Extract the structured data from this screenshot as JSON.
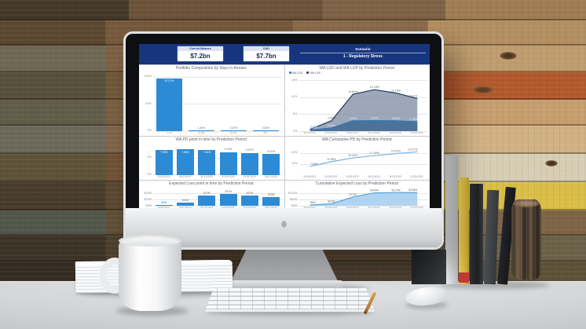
{
  "colors": {
    "header_navy": "#16357e",
    "bar_blue": "#2d8bd5",
    "line_dark_navy": "#1f3864",
    "line_mid_blue": "#2f77b5",
    "line_light_blue": "#7ab1e0",
    "card_border": "#33519e"
  },
  "header": {
    "cards": [
      {
        "label": "Current Balance",
        "value": "$7.2bn"
      },
      {
        "label": "EAD",
        "value": "$7.7bn"
      }
    ],
    "scenario_label": "Scenario",
    "scenario_value": "1 - Regulatory Stress"
  },
  "chart_data": [
    {
      "type": "bar",
      "title": "Portfolio Composition by Days in Arrears",
      "categories": [
        "0-30",
        "30-60",
        "60-90",
        "90+"
      ],
      "values": [
        97.27,
        1.44,
        0.47,
        0.52
      ],
      "labels": [
        "97.27%",
        "1.44%",
        "0.47%",
        "0.52%"
      ],
      "ymax": 100,
      "yticks": [
        {
          "v": 100,
          "t": "100%"
        },
        {
          "v": 50,
          "t": "50%"
        },
        {
          "v": 0,
          "t": "0%"
        }
      ]
    },
    {
      "type": "area",
      "title": "WA LGD and WA LGP by Prediction Period",
      "categories": [
        "31/01/2021",
        "31/01/2022",
        "31/01/2023",
        "31/01/2024",
        "31/01/2025",
        "31/01/2026"
      ],
      "legend": [
        {
          "name": "WA LGD",
          "color": "#2f77b5"
        },
        {
          "name": "WA LGP",
          "color": "#1f3864"
        }
      ],
      "series": [
        {
          "name": "WA LGP",
          "color": "#1f3864",
          "fill": "rgba(125,138,162,0.75)",
          "labelColor": "#5f6368",
          "values": [
            0.5,
            3.07,
            10.84,
            12.19,
            11.19,
            9.61
          ],
          "labels": [
            "0.50%",
            "3.07%",
            "10.84%",
            "12.19%",
            "11.19%",
            "9.61%"
          ]
        },
        {
          "name": "WA LGD",
          "color": "#2f77b5",
          "fill": "rgba(62,104,148,0.85)",
          "labelColor": "#eef2f6",
          "values": [
            0.3,
            0.92,
            3.02,
            3.1,
            3.03,
            2.76
          ],
          "labels": [
            "0.30%",
            "0.92%",
            "3.02%",
            "3.10%",
            "3.03%",
            "2.76%"
          ]
        }
      ],
      "ymax": 15,
      "yticks": [
        {
          "v": 15,
          "t": "15%"
        },
        {
          "v": 10,
          "t": "10%"
        },
        {
          "v": 5,
          "t": "5%"
        },
        {
          "v": 0,
          "t": "0%"
        }
      ]
    },
    {
      "type": "bar",
      "title": "WA PD point in time by Prediction Period",
      "categories": [
        "31/01/2021",
        "31/01/2022",
        "31/01/2023",
        "31/01/2024",
        "31/01/2025",
        "31/01/2026"
      ],
      "values": [
        7.39,
        7.56,
        7.46,
        6.76,
        6.57,
        6.2
      ],
      "labels": [
        "7.39%",
        "7.56%",
        "7.46%",
        "6.76%",
        "6.57%",
        "6.20%"
      ],
      "ymax": 8,
      "yticks": [
        {
          "v": 5,
          "t": "5%"
        },
        {
          "v": 0,
          "t": "0%"
        }
      ]
    },
    {
      "type": "line",
      "title": "WA Cumulative PD by Prediction Period",
      "categories": [
        "31/01/2021",
        "31/01/2022",
        "31/01/2023",
        "31/01/2024",
        "31/01/2025",
        "31/01/2026"
      ],
      "series": [
        {
          "name": "WA Cumulative PD",
          "color": "#7ab1e0",
          "labelColor": "#6a6a6a",
          "values": [
            7.46,
            11.85,
            15.26,
            17.5,
            19.32,
            21.07
          ],
          "labels": [
            "7.46%",
            "11.85%",
            "15.26%",
            "17.50%",
            "19.32%",
            "21.07%"
          ]
        }
      ],
      "ymax": 25,
      "yticks": [
        {
          "v": 20,
          "t": "20%"
        },
        {
          "v": 10,
          "t": "10%"
        }
      ]
    },
    {
      "type": "bar",
      "title": "Expected Loss point in time by Prediction Period",
      "categories": [
        "31/01/2021",
        "31/01/2022",
        "31/01/2023",
        "31/01/2024",
        "31/01/2025",
        "31/01/2026"
      ],
      "values": [
        2,
        10,
        32,
        37,
        32,
        28
      ],
      "labels": [
        "$2M",
        "$10M",
        "$32M",
        "$37M",
        "$32M",
        "$28M"
      ],
      "ymax": 45,
      "yticks": [
        {
          "v": 40,
          "t": "$40M"
        },
        {
          "v": 20,
          "t": "$20M"
        },
        {
          "v": 0,
          "t": "$0M"
        }
      ]
    },
    {
      "type": "area",
      "title": "Cumulative Expected Loss by Prediction Period",
      "categories": [
        "31/01/2021",
        "31/01/2022",
        "31/01/2023",
        "31/01/2024",
        "31/01/2025",
        "31/01/2026"
      ],
      "series": [
        {
          "name": "Cumulative Expected Loss",
          "color": "#5ba3d9",
          "fill": "rgba(156,203,240,0.8)",
          "labelColor": "#6a6a6a",
          "values": [
            6,
            16,
            71,
            105,
            107,
            108
          ],
          "labels": [
            "$6M",
            "$16M",
            "$71M",
            "$105M",
            "$107M",
            "$108M"
          ]
        }
      ],
      "ymax": 115,
      "yticks": [
        {
          "v": 100,
          "t": "$100M"
        },
        {
          "v": 50,
          "t": "$50M"
        },
        {
          "v": 0,
          "t": "$0M"
        }
      ]
    }
  ]
}
